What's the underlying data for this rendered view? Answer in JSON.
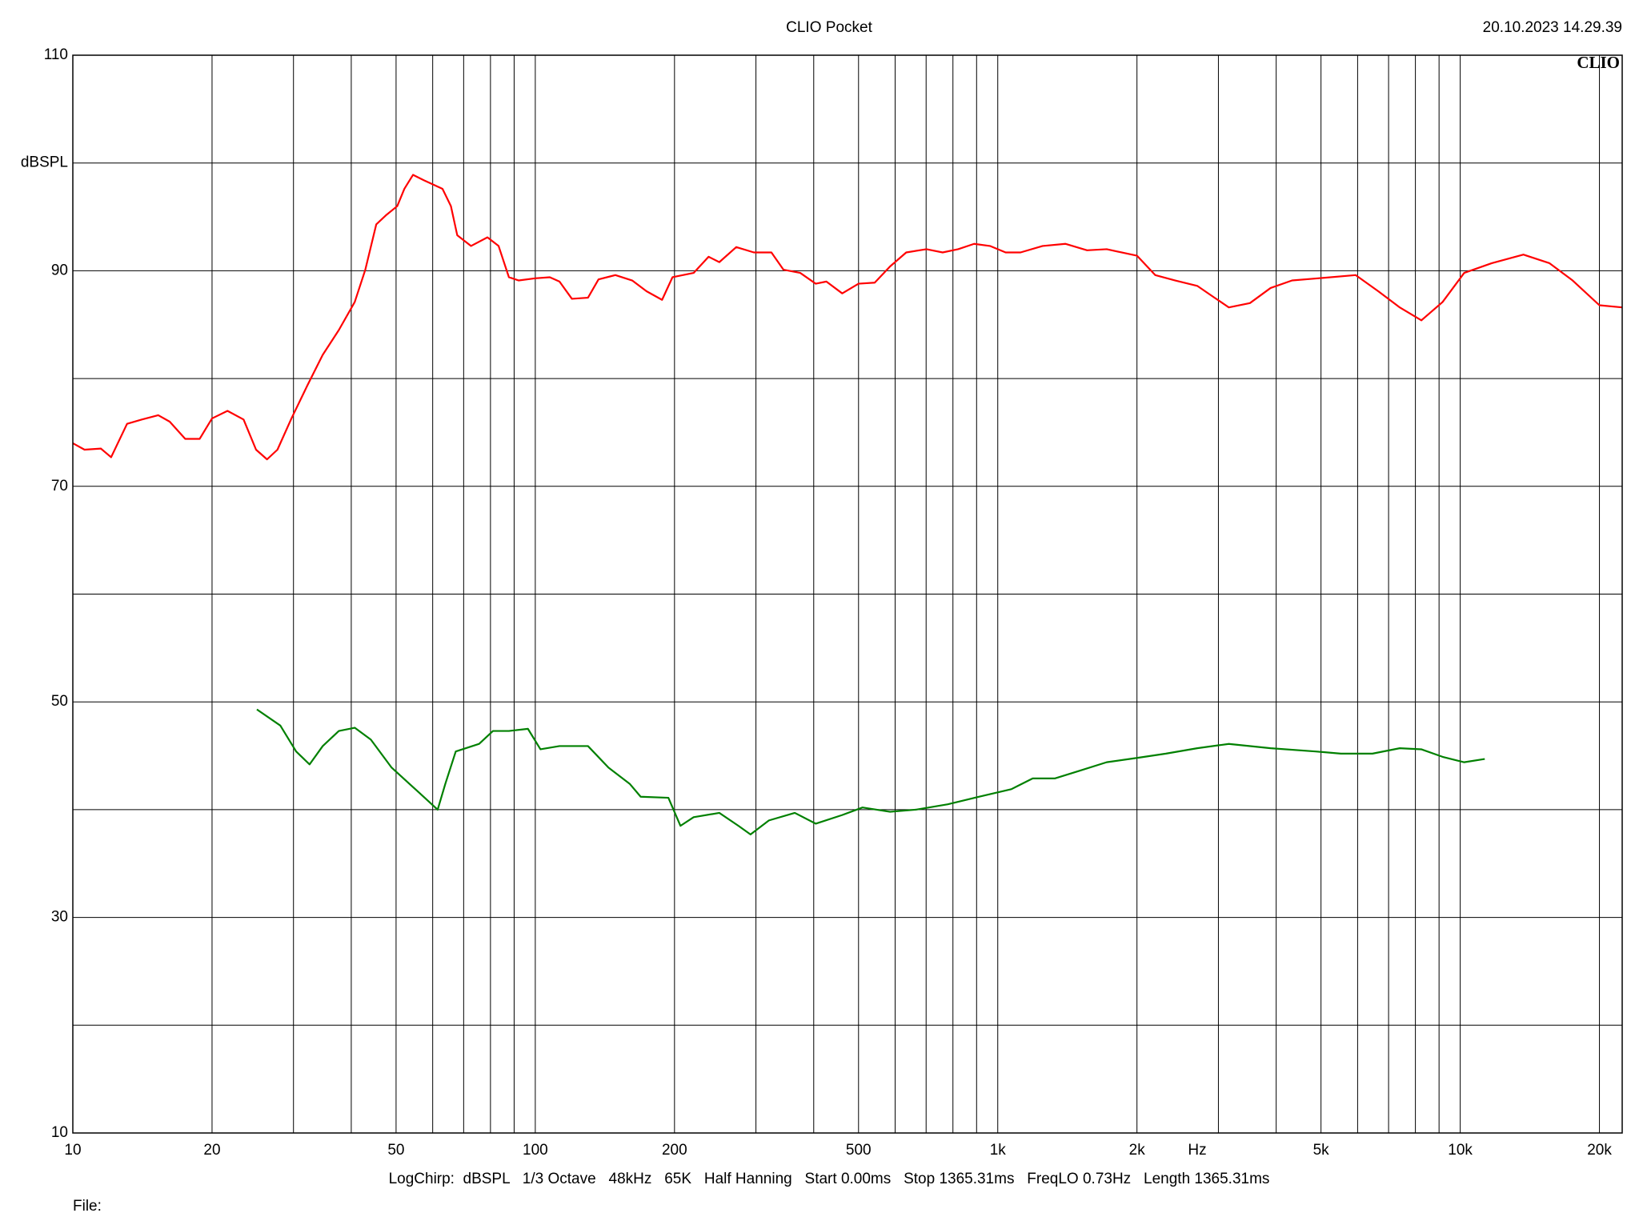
{
  "chart_data": {
    "type": "line",
    "title": "CLIO Pocket",
    "timestamp": "20.10.2023 14.29.39",
    "logo": "CLIO",
    "ylabel": "dBSPL",
    "xlabel": "Hz",
    "settings": "LogChirp:  dBSPL   1/3 Octave   48kHz   65K   Half Hanning   Start 0.00ms   Stop 1365.31ms   FreqLO 0.73Hz   Length 1365.31ms",
    "file_label": "File:",
    "xscale": "log",
    "grid": true,
    "xlim": [
      10,
      22400
    ],
    "ylim": [
      10,
      110
    ],
    "xticks": [
      10,
      20,
      50,
      100,
      200,
      500,
      {
        "value": 1000,
        "label": "1k"
      },
      {
        "value": 2000,
        "label": "2k"
      },
      {
        "value": 5000,
        "label": "5k"
      },
      {
        "value": 10000,
        "label": "10k"
      },
      {
        "value": 20000,
        "label": "20k"
      }
    ],
    "xminor": [
      30,
      40,
      60,
      70,
      80,
      90,
      300,
      400,
      600,
      700,
      800,
      900,
      3000,
      4000,
      6000,
      7000,
      8000,
      9000
    ],
    "yticks": [
      10,
      30,
      50,
      70,
      90,
      110
    ],
    "yminor": [
      20,
      40,
      60,
      80,
      100
    ],
    "series": [
      {
        "color": "#ff0000",
        "x": [
          10,
          10.6,
          11.5,
          12.1,
          13.1,
          14.1,
          15.3,
          16.2,
          17.5,
          18.8,
          20,
          21.6,
          23.4,
          24.9,
          26.3,
          27.7,
          29.7,
          32.1,
          34.7,
          37.6,
          40.7,
          42.9,
          45.3,
          47.7,
          50.3,
          52.1,
          54.4,
          57.4,
          63,
          65.7,
          67.8,
          72.6,
          78.8,
          83.3,
          87.7,
          92.1,
          100,
          107.5,
          112.8,
          120,
          130,
          137,
          149,
          162,
          174,
          188,
          198,
          220,
          237,
          250,
          272,
          297,
          324,
          344,
          374,
          404,
          426,
          461,
          500,
          542,
          585,
          634,
          701,
          760,
          821,
          889,
          962,
          1040,
          1120,
          1250,
          1400,
          1560,
          1720,
          2000,
          2190,
          2420,
          2700,
          2920,
          3160,
          3510,
          3890,
          4330,
          4930,
          5940,
          6650,
          7400,
          8240,
          9160,
          10200,
          11700,
          13700,
          15600,
          17500,
          20000,
          22400
        ],
        "values": [
          74.0,
          73.4,
          73.5,
          72.7,
          75.8,
          76.2,
          76.6,
          76.0,
          74.4,
          74.4,
          76.3,
          77.0,
          76.2,
          73.4,
          72.5,
          73.4,
          76.3,
          79.3,
          82.2,
          84.5,
          87.1,
          90.1,
          94.3,
          95.2,
          96.0,
          97.6,
          98.9,
          98.4,
          97.6,
          96.0,
          93.3,
          92.3,
          93.1,
          92.3,
          89.4,
          89.1,
          89.3,
          89.4,
          89.0,
          87.4,
          87.5,
          89.2,
          89.6,
          89.1,
          88.1,
          87.3,
          89.4,
          89.8,
          91.3,
          90.8,
          92.2,
          91.7,
          91.7,
          90.1,
          89.8,
          88.8,
          89.0,
          87.9,
          88.8,
          88.9,
          90.4,
          91.7,
          92.0,
          91.7,
          92.0,
          92.5,
          92.3,
          91.7,
          91.7,
          92.3,
          92.5,
          91.9,
          92.0,
          91.4,
          89.6,
          89.1,
          88.6,
          87.6,
          86.6,
          87.0,
          88.4,
          89.1,
          89.3,
          89.6,
          88.1,
          86.6,
          85.4,
          87.1,
          89.8,
          90.7,
          91.5,
          90.7,
          89.1,
          86.8,
          86.6
        ]
      },
      {
        "color": "#008000",
        "x": [
          25,
          28.1,
          30.4,
          32.5,
          34.7,
          37.6,
          40.7,
          44.1,
          48.9,
          56,
          61.5,
          63.9,
          67.3,
          75.6,
          81,
          87.7,
          96.4,
          102.6,
          112.8,
          130,
          144,
          160,
          169,
          194,
          206,
          220,
          250,
          275,
          292,
          320,
          364,
          404,
          461,
          510,
          585,
          665,
          780,
          912,
          1070,
          1190,
          1330,
          1500,
          1720,
          2000,
          2310,
          2700,
          3160,
          3890,
          4870,
          5520,
          6460,
          7400,
          8240,
          9160,
          10200,
          11300
        ],
        "values": [
          49.3,
          47.8,
          45.4,
          44.2,
          45.9,
          47.3,
          47.6,
          46.5,
          43.9,
          41.6,
          40.0,
          42.4,
          45.4,
          46.1,
          47.3,
          47.3,
          47.5,
          45.6,
          45.9,
          45.9,
          43.9,
          42.4,
          41.2,
          41.1,
          38.5,
          39.3,
          39.7,
          38.5,
          37.7,
          39.0,
          39.7,
          38.7,
          39.5,
          40.2,
          39.8,
          40.0,
          40.5,
          41.2,
          41.9,
          42.9,
          42.9,
          43.6,
          44.4,
          44.8,
          45.2,
          45.7,
          46.1,
          45.7,
          45.4,
          45.2,
          45.2,
          45.7,
          45.6,
          44.9,
          44.4,
          44.7
        ]
      }
    ]
  }
}
